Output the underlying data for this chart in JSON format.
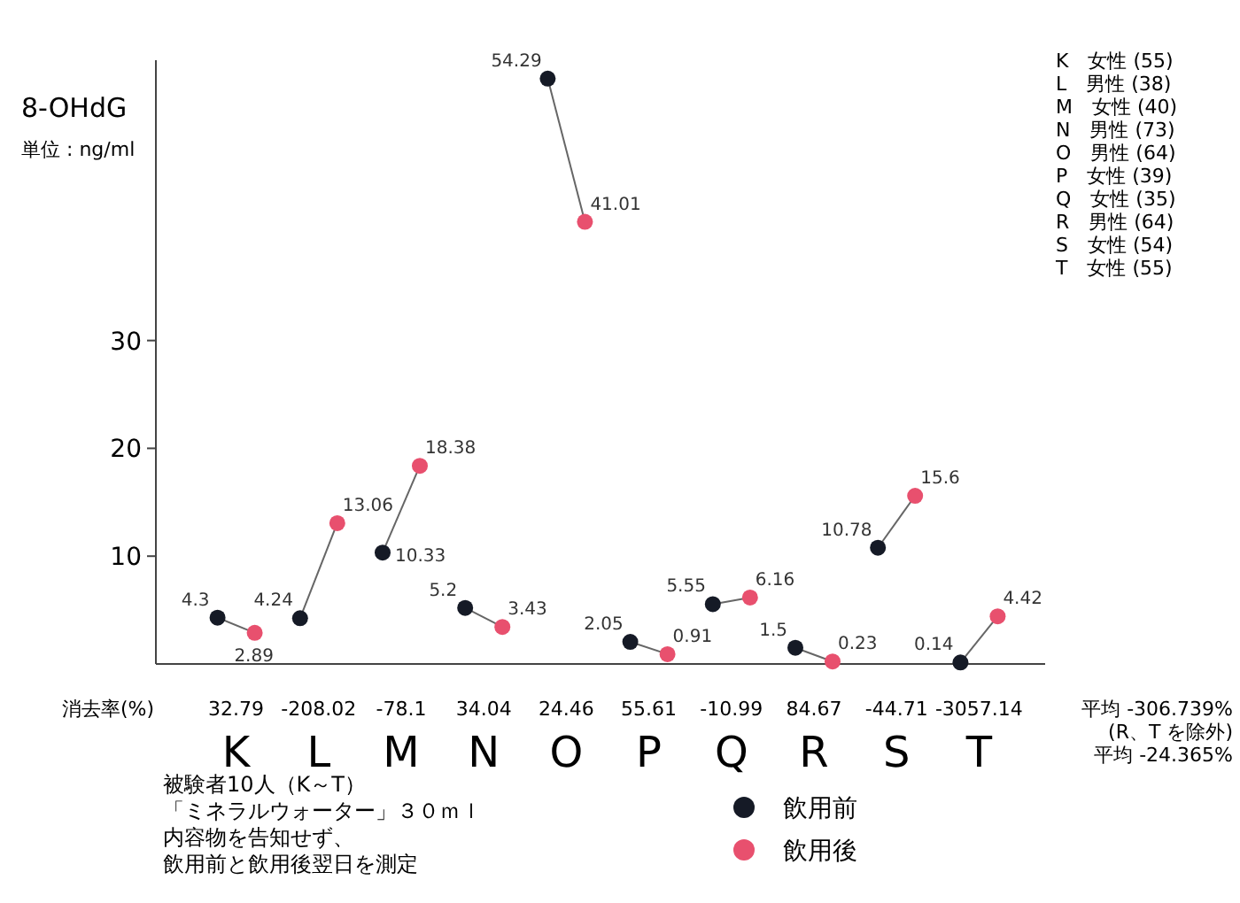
{
  "chart_data": {
    "type": "scatter",
    "title": "8-OHdG",
    "subtitle": "単位 : ng/ml",
    "categories": [
      "K",
      "L",
      "M",
      "N",
      "O",
      "P",
      "Q",
      "R",
      "S",
      "T"
    ],
    "series": [
      {
        "name": "飲用前",
        "color": "#151a26",
        "values": [
          4.3,
          4.24,
          10.33,
          5.2,
          54.29,
          2.05,
          5.55,
          1.5,
          10.78,
          0.14
        ]
      },
      {
        "name": "飲用後",
        "color": "#e8506e",
        "values": [
          2.89,
          13.06,
          18.38,
          3.43,
          41.01,
          0.91,
          6.16,
          0.23,
          15.6,
          4.42
        ]
      }
    ],
    "ylim": [
      0,
      56
    ],
    "yticks": [
      10,
      20,
      30
    ],
    "data_labels": true,
    "legend": "bottom",
    "marker": "circle",
    "annotations": [
      "消去率(%)",
      "32.79",
      "-208.02",
      "-78.1",
      "34.04",
      "24.46",
      "55.61",
      "-10.99",
      "84.67",
      "-44.71",
      "-3057.14",
      "K　女性 (55)",
      "L　男性 (38)",
      "M　女性 (40)",
      "N　男性 (73)",
      "O　男性 (64)",
      "P　女性 (39)",
      "Q　女性 (35)",
      "R　男性 (64)",
      "S　女性 (54)",
      "T　女性 (55)",
      "平均 -306.739%",
      "(R、T を除外)",
      "平均 -24.365%",
      "被験者10人（K～T）",
      "「ミネラルウォーター」３０ｍｌ",
      "内容物を告知せず、",
      "飲用前と飲用後翌日を測定"
    ]
  }
}
